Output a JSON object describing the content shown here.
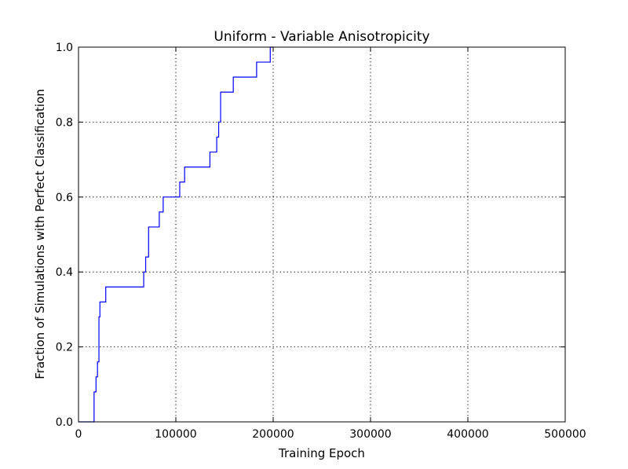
{
  "chart_data": {
    "type": "line",
    "step": "post",
    "title": "Uniform - Variable Anisotropicity",
    "xlabel": "Training Epoch",
    "ylabel": "Fraction of Simulations with Perfect Classification",
    "xlim": [
      0,
      500000
    ],
    "ylim": [
      0,
      1.0
    ],
    "xticks": [
      0,
      100000,
      200000,
      300000,
      400000,
      500000
    ],
    "xtick_labels": [
      "0",
      "100000",
      "200000",
      "300000",
      "400000",
      "500000"
    ],
    "yticks": [
      0,
      0.2,
      0.4,
      0.6,
      0.8,
      1.0
    ],
    "ytick_labels": [
      "0.0",
      "0.2",
      "0.4",
      "0.6",
      "0.8",
      "1.0"
    ],
    "grid": true,
    "color": "#0000ff",
    "series": [
      {
        "x": [
          0,
          16000,
          18000,
          19500,
          21000,
          22000,
          25000,
          28000,
          67000,
          69000,
          72000,
          83000,
          87000,
          104000,
          109000,
          135000,
          142000,
          144000,
          146000,
          159000,
          183000,
          197000,
          200000
        ],
        "y": [
          0,
          0.08,
          0.12,
          0.16,
          0.28,
          0.32,
          0.32,
          0.36,
          0.4,
          0.44,
          0.52,
          0.56,
          0.6,
          0.64,
          0.68,
          0.72,
          0.76,
          0.8,
          0.88,
          0.92,
          0.96,
          1.0,
          1.0
        ]
      }
    ]
  }
}
